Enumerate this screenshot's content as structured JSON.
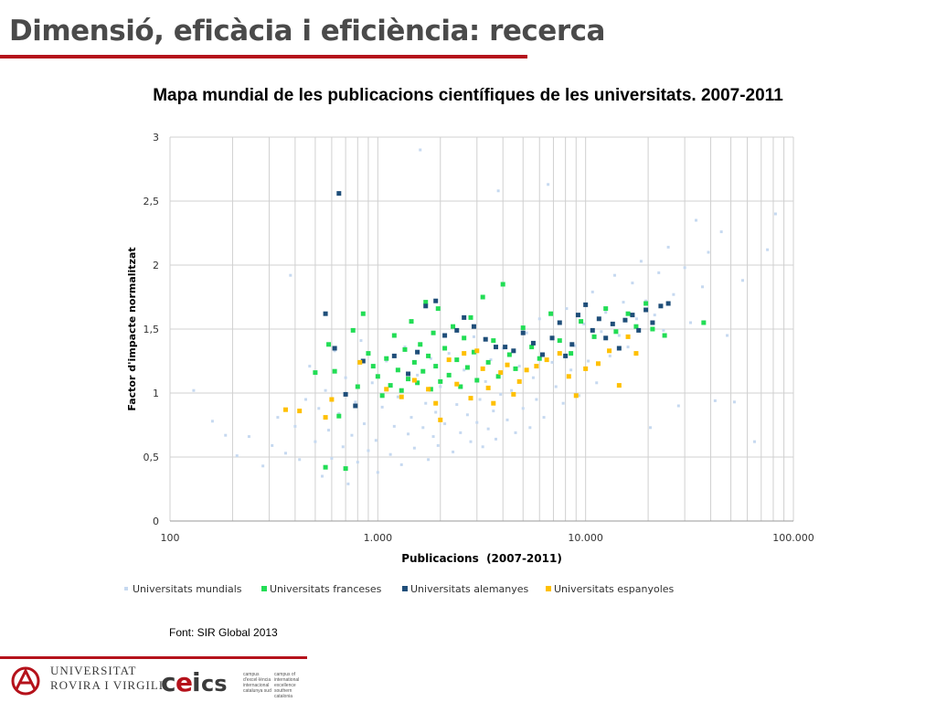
{
  "slide": {
    "title": "Dimensió, eficàcia i eficiència: recerca",
    "source_note": "Font: SIR Global 2013",
    "footer_logo_text": [
      "Universitat",
      "Rovira i Virgili"
    ],
    "cei_text_1": "campus d'excel·lència internacional catalunya sud",
    "cei_text_2": "campus of international excellence southern catalonia"
  },
  "colors": {
    "mundials": "#c6d9f0",
    "franceses": "#22dd55",
    "alemanyes": "#1f4e79",
    "espanyoles": "#ffc000",
    "brand": "#b5121b"
  },
  "chart_data": {
    "type": "scatter",
    "title": "Mapa mundial de les publicacions científiques de les universitats. 2007-2011",
    "xlabel": "Publicacions  (2007-2011)",
    "ylabel": "Factor d'impacte normalitzat",
    "x_scale": "log",
    "xlim": [
      100,
      100000
    ],
    "ylim": [
      0,
      3
    ],
    "xticks": [
      100,
      1000,
      10000,
      100000
    ],
    "xtick_labels": [
      "100",
      "1.000",
      "10.000",
      "100.000"
    ],
    "yticks": [
      0,
      0.5,
      1,
      1.5,
      2,
      2.5,
      3
    ],
    "ytick_labels": [
      "0",
      "0,5",
      "1",
      "1,5",
      "2",
      "2,5",
      "3"
    ],
    "grid": "vertical log gridlines and horizontal major gridlines",
    "legend_position": "bottom",
    "series": [
      {
        "name": "Universitats mundials",
        "color": "#c6d9f0",
        "points": [
          [
            130,
            1.02
          ],
          [
            160,
            0.78
          ],
          [
            185,
            0.67
          ],
          [
            210,
            0.51
          ],
          [
            240,
            0.66
          ],
          [
            280,
            0.43
          ],
          [
            310,
            0.59
          ],
          [
            330,
            0.81
          ],
          [
            360,
            0.53
          ],
          [
            380,
            1.92
          ],
          [
            400,
            0.74
          ],
          [
            420,
            0.48
          ],
          [
            450,
            0.95
          ],
          [
            470,
            1.21
          ],
          [
            500,
            0.62
          ],
          [
            520,
            0.88
          ],
          [
            540,
            0.35
          ],
          [
            560,
            1.02
          ],
          [
            580,
            0.71
          ],
          [
            600,
            0.49
          ],
          [
            620,
            1.33
          ],
          [
            650,
            0.84
          ],
          [
            680,
            0.58
          ],
          [
            700,
            1.12
          ],
          [
            720,
            0.29
          ],
          [
            750,
            0.67
          ],
          [
            780,
            0.93
          ],
          [
            800,
            0.46
          ],
          [
            830,
            1.41
          ],
          [
            860,
            0.76
          ],
          [
            900,
            0.55
          ],
          [
            940,
            1.08
          ],
          [
            980,
            0.63
          ],
          [
            1000,
            0.38
          ],
          [
            1050,
            0.89
          ],
          [
            1100,
            1.25
          ],
          [
            1150,
            0.52
          ],
          [
            1200,
            0.74
          ],
          [
            1250,
            0.97
          ],
          [
            1300,
            0.44
          ],
          [
            1350,
            1.36
          ],
          [
            1400,
            0.68
          ],
          [
            1450,
            0.81
          ],
          [
            1500,
            0.57
          ],
          [
            1550,
            1.14
          ],
          [
            1600,
            2.9
          ],
          [
            1650,
            0.73
          ],
          [
            1700,
            0.92
          ],
          [
            1750,
            0.48
          ],
          [
            1800,
            1.27
          ],
          [
            1850,
            0.66
          ],
          [
            1900,
            0.85
          ],
          [
            1950,
            0.59
          ],
          [
            2000,
            1.05
          ],
          [
            2100,
            0.76
          ],
          [
            2200,
            1.31
          ],
          [
            2300,
            0.54
          ],
          [
            2400,
            0.91
          ],
          [
            2500,
            0.69
          ],
          [
            2600,
            1.18
          ],
          [
            2700,
            0.83
          ],
          [
            2800,
            0.62
          ],
          [
            2900,
            1.44
          ],
          [
            3000,
            0.77
          ],
          [
            3100,
            0.95
          ],
          [
            3200,
            0.58
          ],
          [
            3300,
            1.09
          ],
          [
            3400,
            0.72
          ],
          [
            3500,
            1.26
          ],
          [
            3600,
            0.86
          ],
          [
            3700,
            0.64
          ],
          [
            3800,
            2.58
          ],
          [
            3900,
            0.99
          ],
          [
            4000,
            1.35
          ],
          [
            4200,
            0.79
          ],
          [
            4400,
            1.02
          ],
          [
            4600,
            0.69
          ],
          [
            4800,
            1.21
          ],
          [
            5000,
            0.88
          ],
          [
            5200,
            1.47
          ],
          [
            5400,
            0.73
          ],
          [
            5600,
            1.12
          ],
          [
            5800,
            0.95
          ],
          [
            6000,
            1.58
          ],
          [
            6300,
            0.81
          ],
          [
            6600,
            2.63
          ],
          [
            6900,
            1.24
          ],
          [
            7200,
            1.05
          ],
          [
            7500,
            1.41
          ],
          [
            7800,
            0.92
          ],
          [
            8100,
            1.66
          ],
          [
            8500,
            1.18
          ],
          [
            8900,
            1.37
          ],
          [
            9300,
            0.98
          ],
          [
            9800,
            1.54
          ],
          [
            10300,
            1.25
          ],
          [
            10800,
            1.79
          ],
          [
            11300,
            1.08
          ],
          [
            11900,
            1.48
          ],
          [
            12500,
            1.63
          ],
          [
            13100,
            1.29
          ],
          [
            13800,
            1.92
          ],
          [
            14500,
            1.45
          ],
          [
            15200,
            1.71
          ],
          [
            16000,
            1.36
          ],
          [
            16800,
            1.86
          ],
          [
            17600,
            1.58
          ],
          [
            18500,
            2.03
          ],
          [
            19500,
            1.72
          ],
          [
            20500,
            0.73
          ],
          [
            21500,
            1.61
          ],
          [
            22500,
            1.94
          ],
          [
            23700,
            1.49
          ],
          [
            25000,
            2.14
          ],
          [
            26500,
            1.77
          ],
          [
            28000,
            0.9
          ],
          [
            30000,
            1.98
          ],
          [
            32000,
            1.55
          ],
          [
            34000,
            2.35
          ],
          [
            36500,
            1.83
          ],
          [
            39000,
            2.1
          ],
          [
            42000,
            0.94
          ],
          [
            45000,
            2.26
          ],
          [
            48000,
            1.45
          ],
          [
            52000,
            0.93
          ],
          [
            57000,
            1.88
          ],
          [
            65000,
            0.62
          ],
          [
            75000,
            2.12
          ],
          [
            82000,
            2.4
          ]
        ]
      },
      {
        "name": "Universitats franceses",
        "color": "#22dd55",
        "points": [
          [
            500,
            1.16
          ],
          [
            560,
            0.42
          ],
          [
            580,
            1.38
          ],
          [
            620,
            1.17
          ],
          [
            650,
            0.82
          ],
          [
            700,
            0.41
          ],
          [
            760,
            1.49
          ],
          [
            800,
            1.05
          ],
          [
            850,
            1.62
          ],
          [
            900,
            1.31
          ],
          [
            950,
            1.21
          ],
          [
            1000,
            1.13
          ],
          [
            1050,
            0.98
          ],
          [
            1100,
            1.27
          ],
          [
            1150,
            1.06
          ],
          [
            1200,
            1.45
          ],
          [
            1250,
            1.18
          ],
          [
            1300,
            1.02
          ],
          [
            1350,
            1.34
          ],
          [
            1400,
            1.11
          ],
          [
            1450,
            1.56
          ],
          [
            1500,
            1.24
          ],
          [
            1550,
            1.08
          ],
          [
            1600,
            1.38
          ],
          [
            1650,
            1.17
          ],
          [
            1700,
            1.71
          ],
          [
            1750,
            1.29
          ],
          [
            1800,
            1.03
          ],
          [
            1850,
            1.47
          ],
          [
            1900,
            1.21
          ],
          [
            1950,
            1.66
          ],
          [
            2000,
            1.09
          ],
          [
            2100,
            1.35
          ],
          [
            2200,
            1.14
          ],
          [
            2300,
            1.52
          ],
          [
            2400,
            1.26
          ],
          [
            2500,
            1.05
          ],
          [
            2600,
            1.43
          ],
          [
            2700,
            1.2
          ],
          [
            2800,
            1.59
          ],
          [
            2900,
            1.32
          ],
          [
            3000,
            1.1
          ],
          [
            3200,
            1.75
          ],
          [
            3400,
            1.24
          ],
          [
            3600,
            1.41
          ],
          [
            3800,
            1.13
          ],
          [
            4000,
            1.85
          ],
          [
            4300,
            1.3
          ],
          [
            4600,
            1.19
          ],
          [
            5000,
            1.51
          ],
          [
            5500,
            1.36
          ],
          [
            6000,
            1.27
          ],
          [
            6800,
            1.62
          ],
          [
            7500,
            1.41
          ],
          [
            8500,
            1.31
          ],
          [
            9500,
            1.56
          ],
          [
            11000,
            1.44
          ],
          [
            12500,
            1.66
          ],
          [
            14000,
            1.48
          ],
          [
            16000,
            1.62
          ],
          [
            17500,
            1.52
          ],
          [
            19500,
            1.7
          ],
          [
            21000,
            1.5
          ],
          [
            24000,
            1.45
          ],
          [
            37000,
            1.55
          ]
        ]
      },
      {
        "name": "Universitats alemanyes",
        "color": "#1f4e79",
        "points": [
          [
            560,
            1.62
          ],
          [
            620,
            1.35
          ],
          [
            650,
            2.56
          ],
          [
            700,
            0.99
          ],
          [
            780,
            0.9
          ],
          [
            850,
            1.25
          ],
          [
            1200,
            1.29
          ],
          [
            1400,
            1.15
          ],
          [
            1550,
            1.32
          ],
          [
            1700,
            1.68
          ],
          [
            1900,
            1.72
          ],
          [
            2100,
            1.45
          ],
          [
            2400,
            1.49
          ],
          [
            2600,
            1.59
          ],
          [
            2900,
            1.52
          ],
          [
            3300,
            1.42
          ],
          [
            3700,
            1.36
          ],
          [
            4100,
            1.36
          ],
          [
            4500,
            1.33
          ],
          [
            5000,
            1.47
          ],
          [
            5600,
            1.39
          ],
          [
            6200,
            1.3
          ],
          [
            6900,
            1.43
          ],
          [
            7500,
            1.55
          ],
          [
            8000,
            1.29
          ],
          [
            8600,
            1.38
          ],
          [
            9200,
            1.61
          ],
          [
            10000,
            1.69
          ],
          [
            10800,
            1.49
          ],
          [
            11600,
            1.58
          ],
          [
            12500,
            1.43
          ],
          [
            13500,
            1.54
          ],
          [
            14500,
            1.35
          ],
          [
            15500,
            1.57
          ],
          [
            16800,
            1.61
          ],
          [
            18000,
            1.49
          ],
          [
            19500,
            1.65
          ],
          [
            21000,
            1.55
          ],
          [
            23000,
            1.68
          ],
          [
            25000,
            1.7
          ]
        ]
      },
      {
        "name": "Universitats espanyoles",
        "color": "#ffc000",
        "points": [
          [
            360,
            0.87
          ],
          [
            420,
            0.86
          ],
          [
            560,
            0.81
          ],
          [
            600,
            0.95
          ],
          [
            820,
            1.24
          ],
          [
            1100,
            1.03
          ],
          [
            1300,
            0.97
          ],
          [
            1500,
            1.1
          ],
          [
            1750,
            1.03
          ],
          [
            1900,
            0.92
          ],
          [
            2000,
            0.79
          ],
          [
            2200,
            1.26
          ],
          [
            2400,
            1.07
          ],
          [
            2600,
            1.31
          ],
          [
            2800,
            0.96
          ],
          [
            3000,
            1.33
          ],
          [
            3200,
            1.19
          ],
          [
            3400,
            1.04
          ],
          [
            3600,
            0.92
          ],
          [
            3900,
            1.16
          ],
          [
            4200,
            1.22
          ],
          [
            4500,
            0.99
          ],
          [
            4800,
            1.09
          ],
          [
            5200,
            1.18
          ],
          [
            5800,
            1.21
          ],
          [
            6500,
            1.26
          ],
          [
            7500,
            1.31
          ],
          [
            8300,
            1.13
          ],
          [
            9000,
            0.98
          ],
          [
            10000,
            1.19
          ],
          [
            11500,
            1.23
          ],
          [
            13000,
            1.33
          ],
          [
            14500,
            1.06
          ],
          [
            16000,
            1.44
          ],
          [
            17500,
            1.31
          ]
        ]
      }
    ]
  }
}
